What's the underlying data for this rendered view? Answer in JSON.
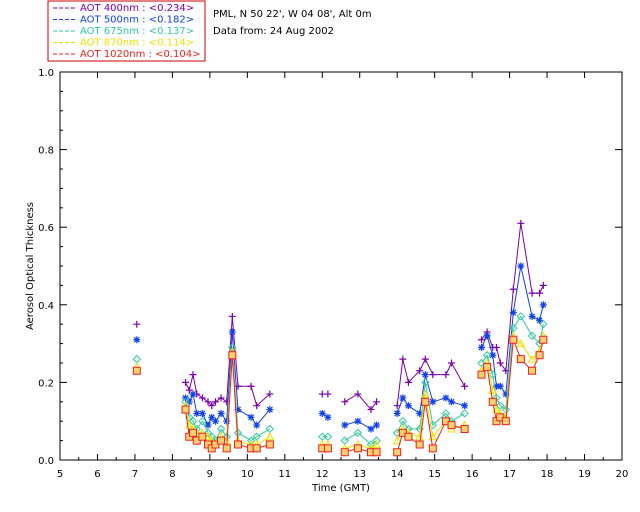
{
  "chart_data": {
    "type": "line",
    "info_line1": "PML, N 50 22', W 04 08', Alt 0m",
    "info_line2": "Data from: 24 Aug 2002",
    "xlabel": "Time (GMT)",
    "ylabel": "Aerosol Optical Thickness",
    "xlim": [
      5,
      20
    ],
    "ylim": [
      0.0,
      1.0
    ],
    "x_ticks": [
      5,
      6,
      7,
      8,
      9,
      10,
      11,
      12,
      13,
      14,
      15,
      16,
      17,
      18,
      19,
      20
    ],
    "y_ticks": [
      "0.0",
      "0.2",
      "0.4",
      "0.6",
      "0.8",
      "1.0"
    ],
    "legend_position": "top-left",
    "x": [
      7.05,
      8.35,
      8.45,
      8.55,
      8.65,
      8.8,
      8.95,
      9.05,
      9.15,
      9.3,
      9.45,
      9.6,
      9.75,
      10.1,
      10.25,
      10.6,
      12.0,
      12.15,
      12.6,
      12.95,
      13.3,
      13.45,
      14.0,
      14.15,
      14.3,
      14.6,
      14.75,
      14.95,
      15.3,
      15.45,
      15.8,
      16.25,
      16.4,
      16.55,
      16.65,
      16.75,
      16.9,
      17.1,
      17.3,
      17.6,
      17.8,
      17.9
    ],
    "series": [
      {
        "name": "AOT  400nm : <0.234>",
        "color": "#7a00a8",
        "marker": "plus",
        "values": [
          0.35,
          0.2,
          0.18,
          0.22,
          0.17,
          0.16,
          0.15,
          0.14,
          0.15,
          0.16,
          0.15,
          0.37,
          0.19,
          0.19,
          0.14,
          0.17,
          0.17,
          0.17,
          0.15,
          0.17,
          0.13,
          0.15,
          0.14,
          0.26,
          0.2,
          0.23,
          0.26,
          0.22,
          0.22,
          0.25,
          0.19,
          0.31,
          0.33,
          0.29,
          0.29,
          0.25,
          0.23,
          0.44,
          0.61,
          0.43,
          0.43,
          0.45
        ]
      },
      {
        "name": "AOT  500nm : <0.182>",
        "color": "#1040e8",
        "marker": "asterisk",
        "values": [
          0.31,
          0.16,
          0.15,
          0.17,
          0.12,
          0.12,
          0.09,
          0.11,
          0.1,
          0.12,
          0.1,
          0.33,
          0.13,
          0.11,
          0.09,
          0.13,
          0.12,
          0.11,
          0.09,
          0.1,
          0.08,
          0.09,
          0.12,
          0.16,
          0.14,
          0.12,
          0.22,
          0.15,
          0.16,
          0.15,
          0.14,
          0.29,
          0.32,
          0.27,
          0.19,
          0.19,
          0.17,
          0.38,
          0.5,
          0.37,
          0.36,
          0.4
        ]
      },
      {
        "name": "AOT  675nm : <0.137>",
        "color": "#30c8a0",
        "marker": "diamond",
        "values": [
          0.26,
          0.15,
          0.11,
          0.1,
          0.08,
          0.1,
          0.07,
          0.06,
          0.05,
          0.08,
          0.06,
          0.29,
          0.07,
          0.05,
          0.06,
          0.08,
          0.06,
          0.06,
          0.05,
          0.07,
          0.04,
          0.05,
          0.07,
          0.1,
          0.08,
          0.08,
          0.2,
          0.09,
          0.12,
          0.1,
          0.12,
          0.25,
          0.27,
          0.22,
          0.16,
          0.14,
          0.13,
          0.34,
          0.37,
          0.32,
          0.3,
          0.35
        ]
      },
      {
        "name": "AOT  870nm : <0.114>",
        "color": "#f0e000",
        "marker": "triangle",
        "values": [
          0.24,
          0.14,
          0.09,
          0.08,
          0.07,
          0.07,
          0.06,
          0.05,
          0.04,
          0.06,
          0.05,
          0.28,
          0.05,
          0.04,
          0.04,
          0.06,
          0.04,
          0.04,
          0.03,
          0.04,
          0.03,
          0.04,
          0.05,
          0.08,
          0.07,
          0.06,
          0.17,
          0.06,
          0.1,
          0.08,
          0.09,
          0.23,
          0.25,
          0.18,
          0.13,
          0.12,
          0.11,
          0.32,
          0.3,
          0.26,
          0.28,
          0.32
        ]
      },
      {
        "name": "AOT 1020nm : <0.104>",
        "color": "#e82020",
        "marker": "square",
        "values": [
          0.23,
          0.13,
          0.06,
          0.07,
          0.05,
          0.06,
          0.04,
          0.03,
          0.04,
          0.05,
          0.03,
          0.27,
          0.04,
          0.03,
          0.03,
          0.04,
          0.03,
          0.03,
          0.02,
          0.03,
          0.02,
          0.02,
          0.02,
          0.07,
          0.06,
          0.04,
          0.15,
          0.03,
          0.1,
          0.09,
          0.08,
          0.22,
          0.24,
          0.15,
          0.1,
          0.11,
          0.1,
          0.31,
          0.26,
          0.23,
          0.27,
          0.31
        ]
      }
    ]
  }
}
